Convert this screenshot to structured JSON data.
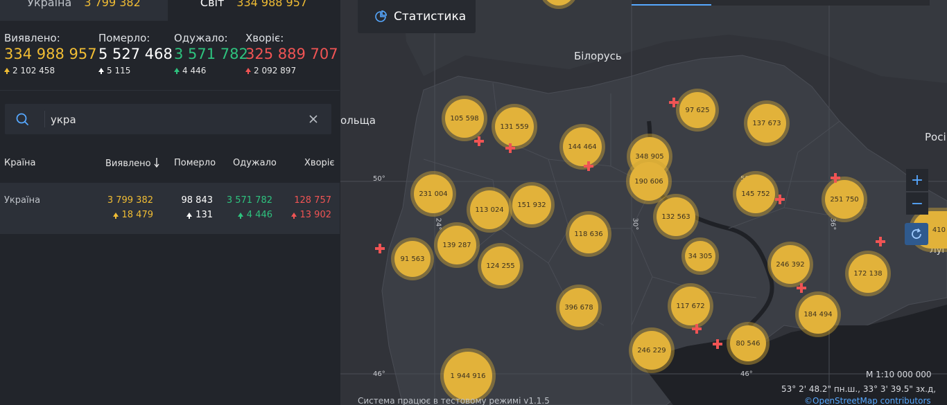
{
  "tabs": {
    "country": {
      "name": "Україна",
      "value": "3 799 382"
    },
    "world": {
      "name": "Світ",
      "value": "334 988 957"
    }
  },
  "totals": [
    {
      "label": "Виявлено:",
      "value": "334 988 957",
      "delta": "2 102 458",
      "color": "#f1bd34"
    },
    {
      "label": "Померло:",
      "value": "5 527 468",
      "delta": "5 115",
      "color": "#ffffff"
    },
    {
      "label": "Одужало:",
      "value": "3 571 782",
      "delta": "4 446",
      "color": "#2ec27e"
    },
    {
      "label": "Хворіє:",
      "value": "325 889 707",
      "delta": "2 092 897",
      "color": "#f05454"
    }
  ],
  "search": {
    "value": "укра",
    "icon": "search-icon",
    "clear_icon": "close-icon"
  },
  "table": {
    "headers": [
      "Країна",
      "Виявлено",
      "Померло",
      "Одужало",
      "Хворіє"
    ],
    "sort_icon": "arrow-down-icon",
    "rows": [
      {
        "country": "Україна",
        "confirmed": "3 799 382",
        "confirmed_delta": "18 479",
        "deaths": "98 843",
        "deaths_delta": "131",
        "recovered": "3 571 782",
        "recovered_delta": "4 446",
        "sick": "128 757",
        "sick_delta": "13 902"
      }
    ]
  },
  "map": {
    "stat_button": "Статистика",
    "stat_icon": "pie-chart-icon",
    "place_labels": [
      "Білорусь",
      "ольща",
      "Росі",
      "Луганс"
    ],
    "grid_labels": [
      "50°",
      "50°",
      "46°",
      "46°",
      "24°",
      "30°",
      "36°"
    ],
    "clusters": [
      "105 598",
      "131 559",
      "144 464",
      "97 625",
      "137 673",
      "348 905",
      "190 606",
      "231 004",
      "113 024",
      "151 932",
      "145 752",
      "251 750",
      "132 563",
      "118 636",
      "139 287",
      "34 305",
      "91 563",
      "124 255",
      "246 392",
      "172 138",
      "396 678",
      "117 672",
      "184 494",
      "80 546",
      "246 229",
      "1 944 916",
      "410"
    ],
    "zoom_in": "+",
    "zoom_out": "−",
    "scale": "М 1:10 000 000",
    "coordinates": "53° 2' 48.2\" пн.ш., 33° 3' 39.5\" зх.д,",
    "attribution": "©OpenStreetMap contributors",
    "version_note": "Система працює в тестовому режимі v1.1.5"
  },
  "colors": {
    "confirmed": "#f1bd34",
    "deaths": "#ffffff",
    "recovered": "#2ec27e",
    "sick": "#f05454",
    "cluster": "#e2b23a",
    "accent": "#56a8ff"
  }
}
